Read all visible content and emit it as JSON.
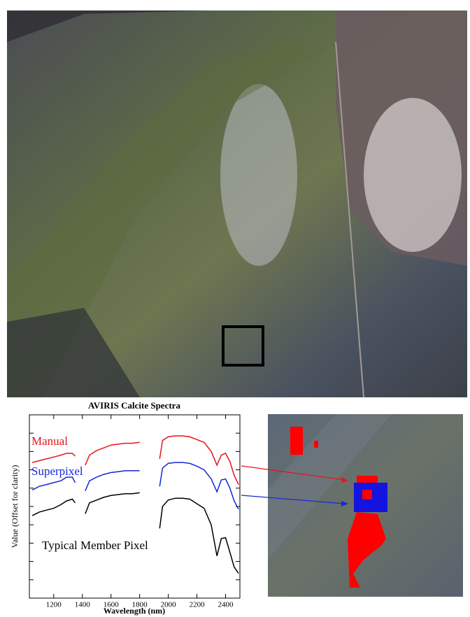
{
  "chart_data": {
    "type": "line",
    "title": "AVIRIS Calcite Spectra",
    "x_label": "Wavelength (nm)",
    "y_label": "Value (Offset for clarity)",
    "x": [
      1050,
      1100,
      1150,
      1200,
      1250,
      1290,
      1330,
      1350,
      1400,
      1420,
      1450,
      1500,
      1550,
      1600,
      1650,
      1700,
      1750,
      1800,
      1870,
      1940,
      1960,
      2000,
      2050,
      2100,
      2150,
      2200,
      2250,
      2300,
      2340,
      2370,
      2400,
      2430,
      2460,
      2490
    ],
    "series": [
      {
        "name": "Manual",
        "color": "#e8141c",
        "values": [
          7.4,
          7.5,
          7.6,
          7.7,
          7.8,
          7.9,
          7.9,
          7.75,
          null,
          7.25,
          7.8,
          8.05,
          8.2,
          8.35,
          8.4,
          8.45,
          8.45,
          8.5,
          null,
          7.6,
          8.6,
          8.8,
          8.85,
          8.85,
          8.8,
          8.65,
          8.5,
          8.0,
          7.25,
          7.8,
          7.9,
          7.45,
          6.7,
          6.2
        ]
      },
      {
        "name": "Superpixel",
        "color": "#1428d8",
        "values": [
          5.9,
          6.1,
          6.2,
          6.3,
          6.4,
          6.6,
          6.6,
          6.3,
          null,
          5.85,
          6.4,
          6.6,
          6.75,
          6.85,
          6.9,
          6.95,
          6.95,
          6.95,
          null,
          6.1,
          7.1,
          7.35,
          7.4,
          7.4,
          7.35,
          7.2,
          7.0,
          6.5,
          5.8,
          6.45,
          6.5,
          6.0,
          5.3,
          4.85
        ]
      },
      {
        "name": "Typical Member Pixel",
        "color": "#000000",
        "values": [
          4.5,
          4.7,
          4.8,
          4.9,
          5.1,
          5.3,
          5.4,
          5.2,
          null,
          4.6,
          5.2,
          5.35,
          5.5,
          5.6,
          5.65,
          5.7,
          5.7,
          5.75,
          null,
          3.8,
          5.0,
          5.35,
          5.45,
          5.45,
          5.4,
          5.15,
          4.9,
          4.0,
          2.3,
          3.25,
          3.3,
          2.5,
          1.7,
          1.35
        ]
      }
    ],
    "xlim": [
      1030,
      2500
    ],
    "xticks": [
      1200,
      1400,
      1600,
      1800,
      2000,
      2200,
      2400
    ],
    "ylim": [
      0,
      10
    ],
    "yticks": [
      1,
      2,
      3,
      4,
      5,
      6,
      7,
      8,
      9
    ],
    "grid": false
  }
}
